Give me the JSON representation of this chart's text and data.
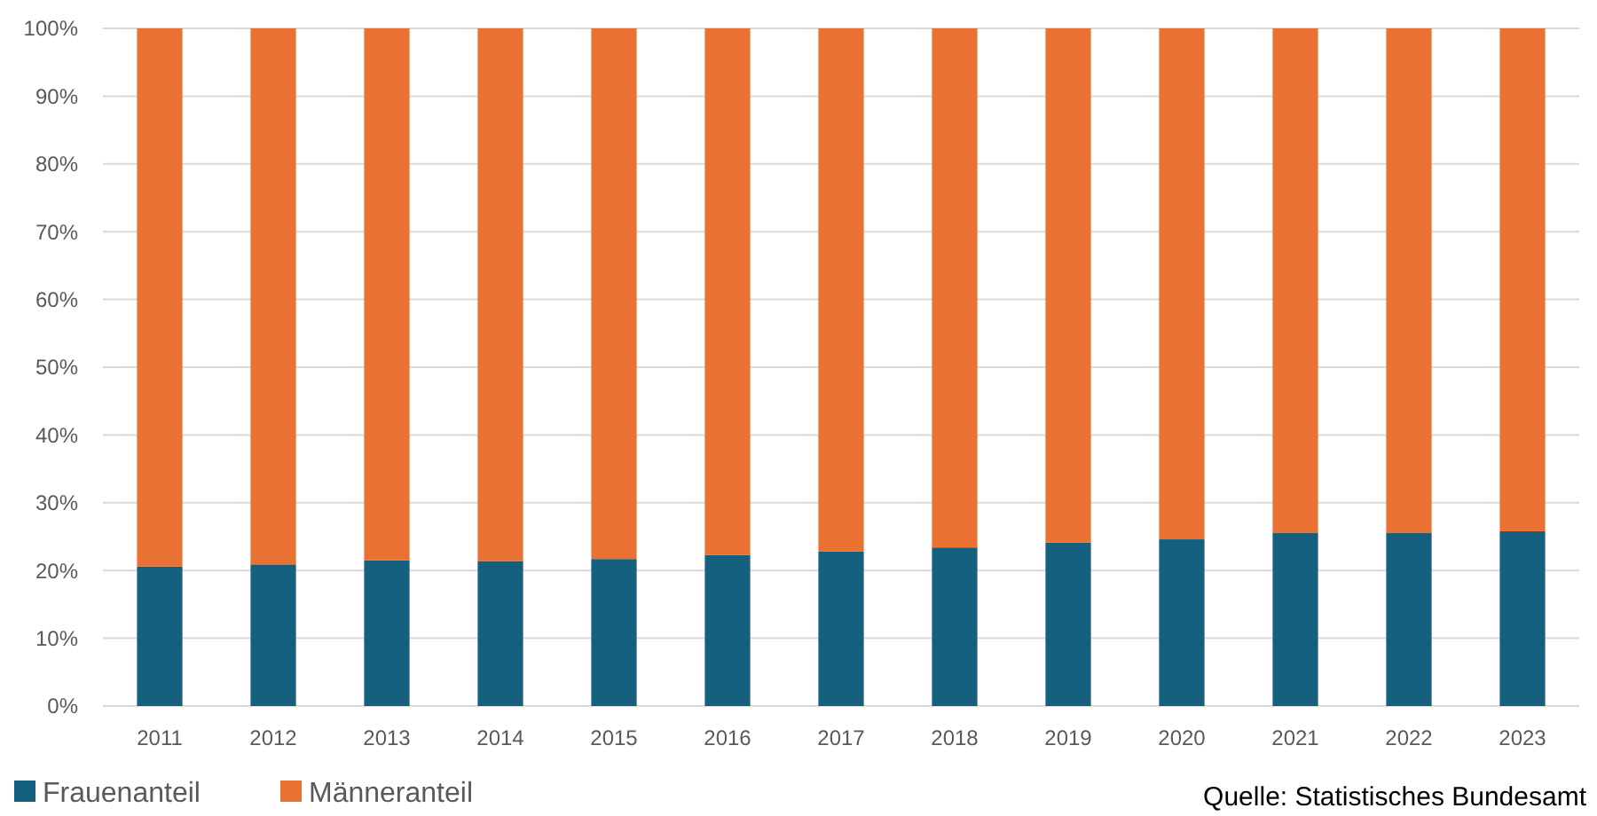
{
  "chart_data": {
    "type": "bar",
    "stacked": true,
    "categories": [
      "2011",
      "2012",
      "2013",
      "2014",
      "2015",
      "2016",
      "2017",
      "2018",
      "2019",
      "2020",
      "2021",
      "2022",
      "2023"
    ],
    "series": [
      {
        "name": "Frauenanteil",
        "color": "#15607e",
        "values": [
          20.6,
          20.9,
          21.5,
          21.4,
          21.7,
          22.3,
          22.8,
          23.4,
          24.1,
          24.6,
          25.6,
          25.6,
          25.8
        ]
      },
      {
        "name": "Männeranteil",
        "color": "#e97132",
        "values": [
          79.4,
          79.1,
          78.5,
          78.6,
          78.3,
          77.7,
          77.2,
          76.6,
          75.9,
          75.4,
          74.4,
          74.4,
          74.2
        ]
      }
    ],
    "ylim": [
      0,
      100
    ],
    "yticks": [
      {
        "value": 0,
        "label": "0%"
      },
      {
        "value": 10,
        "label": "10%"
      },
      {
        "value": 20,
        "label": "20%"
      },
      {
        "value": 30,
        "label": "30%"
      },
      {
        "value": 40,
        "label": "40%"
      },
      {
        "value": 50,
        "label": "50%"
      },
      {
        "value": 60,
        "label": "60%"
      },
      {
        "value": 70,
        "label": "70%"
      },
      {
        "value": 80,
        "label": "80%"
      },
      {
        "value": 90,
        "label": "90%"
      },
      {
        "value": 100,
        "label": "100%"
      }
    ],
    "grid": "y",
    "legend": "bottom left",
    "annotations": [
      "Quelle: Statistisches Bundesamt"
    ]
  }
}
